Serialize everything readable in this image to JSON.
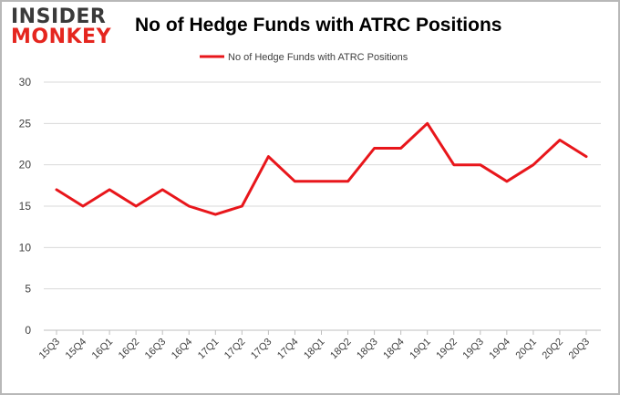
{
  "logo": {
    "line1": "INSIDER",
    "line2": "MONKEY"
  },
  "chart_data": {
    "type": "line",
    "title": "No of Hedge Funds with ATRC Positions",
    "xlabel": "",
    "ylabel": "",
    "categories": [
      "15Q3",
      "15Q4",
      "16Q1",
      "16Q2",
      "16Q3",
      "16Q4",
      "17Q1",
      "17Q2",
      "17Q3",
      "17Q4",
      "18Q1",
      "18Q2",
      "18Q3",
      "18Q4",
      "19Q1",
      "19Q2",
      "19Q3",
      "19Q4",
      "20Q1",
      "20Q2",
      "20Q3"
    ],
    "series": [
      {
        "name": "No of Hedge Funds with ATRC Positions",
        "color": "#e8161b",
        "values": [
          17,
          15,
          17,
          15,
          17,
          15,
          14,
          15,
          21,
          18,
          18,
          18,
          22,
          22,
          25,
          20,
          20,
          18,
          20,
          23,
          21
        ]
      }
    ],
    "ylim": [
      0,
      30
    ],
    "yticks": [
      0,
      5,
      10,
      15,
      20,
      25,
      30
    ],
    "grid": true,
    "legend_position": "top-center"
  }
}
